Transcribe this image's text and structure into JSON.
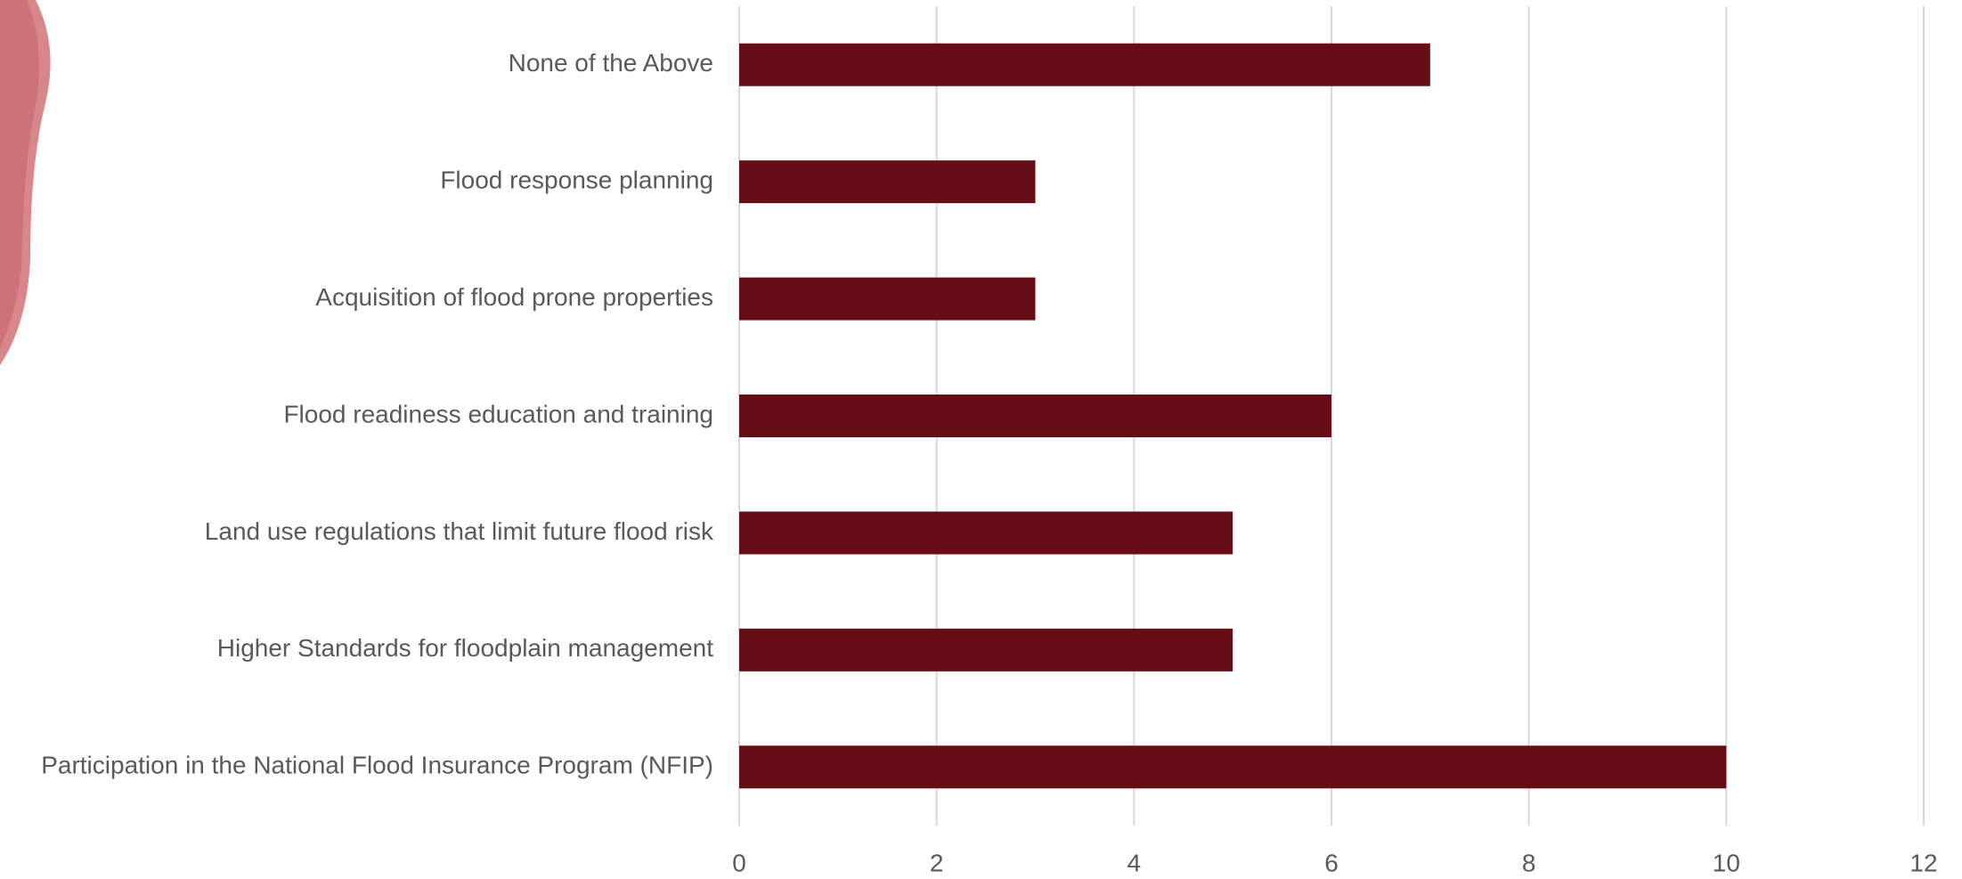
{
  "chart_data": {
    "type": "bar",
    "categories": [
      "None of the Above",
      "Flood response planning",
      "Acquisition of flood prone properties",
      "Flood readiness education and training",
      "Land use regulations that limit future flood risk",
      "Higher Standards for floodplain management",
      "Participation in the National Flood Insurance Program (NFIP)"
    ],
    "values": [
      7,
      3,
      3,
      6,
      5,
      5,
      10
    ],
    "color": "#670d16",
    "xlim": [
      0,
      12
    ],
    "xticks": [
      0,
      2,
      4,
      6,
      8,
      10,
      12
    ],
    "grid": true
  }
}
